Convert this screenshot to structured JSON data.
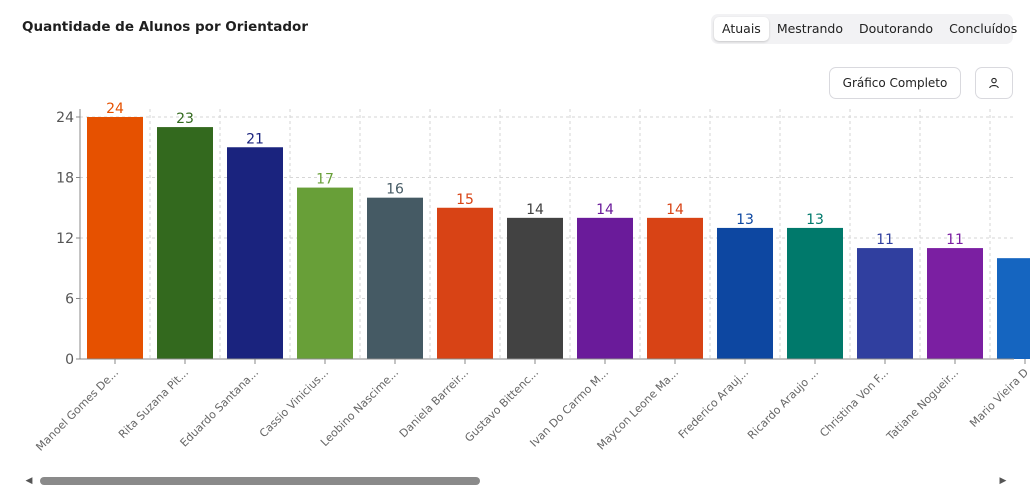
{
  "header": {
    "title": "Quantidade de Alunos por Orientador"
  },
  "tabs": [
    {
      "label": "Atuais",
      "active": true
    },
    {
      "label": "Mestrando",
      "active": false
    },
    {
      "label": "Doutorando",
      "active": false
    },
    {
      "label": "Concluídos",
      "active": false
    }
  ],
  "toolbar": {
    "full_chart_label": "Gráfico Completo",
    "user_icon": "user-icon"
  },
  "scrollbar": {
    "left_icon": "arrow-left-icon",
    "right_icon": "arrow-right-icon"
  },
  "chart_data": {
    "type": "bar",
    "categories": [
      "Manoel Gomes De...",
      "Rita Suzana Pit...",
      "Eduardo Santana...",
      "Cassio Vinicius...",
      "Leobino Nascime...",
      "Daniela Barreir...",
      "Gustavo Bittenc...",
      "Ivan Do Carmo M...",
      "Maycon Leone Ma...",
      "Frederico Arauj...",
      "Ricardo Araujo ...",
      "Christina Von F...",
      "Tatiane Nogueir...",
      "Mario Vieira D"
    ],
    "values": [
      24,
      23,
      21,
      17,
      16,
      15,
      14,
      14,
      14,
      13,
      13,
      11,
      11,
      10
    ],
    "data_labels": [
      "24",
      "23",
      "21",
      "17",
      "16",
      "15",
      "14",
      "14",
      "14",
      "13",
      "13",
      "11",
      "11",
      ""
    ],
    "colors": [
      "#e65100",
      "#33691e",
      "#1a237e",
      "#689f38",
      "#455a64",
      "#d84315",
      "#424242",
      "#6a1b9a",
      "#d84315",
      "#0d47a1",
      "#00796b",
      "#303f9f",
      "#7b1fa2",
      "#1565c0"
    ],
    "yticks": [
      "0",
      "6",
      "12",
      "18",
      "24"
    ],
    "ylim": [
      0,
      24
    ],
    "grid": true,
    "legend": "none",
    "title": "",
    "xlabel": "",
    "ylabel": ""
  }
}
